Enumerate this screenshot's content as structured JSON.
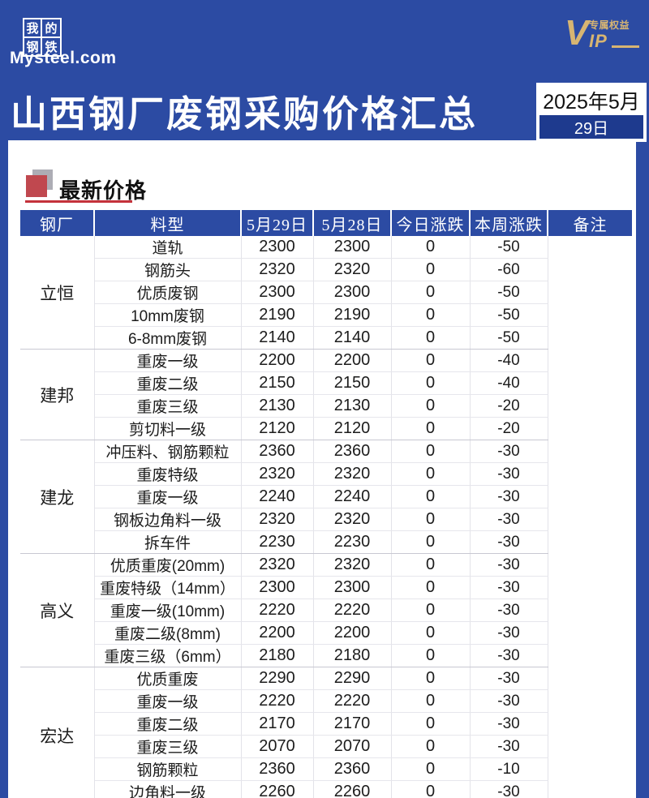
{
  "brand": {
    "logo_chars": [
      "我",
      "的",
      "钢",
      "铁"
    ],
    "logo_domain": "Mysteel.com",
    "vip": {
      "v": "V",
      "ip": "IP",
      "badge": "专属权益"
    }
  },
  "header": {
    "title": "山西钢厂废钢采购价格汇总",
    "date_month": "2025年5月",
    "date_day": "29日"
  },
  "section": {
    "title": "最新价格"
  },
  "table": {
    "columns": [
      "钢厂",
      "料型",
      "5月29日",
      "5月28日",
      "今日涨跌",
      "本周涨跌",
      "备注"
    ],
    "groups": [
      {
        "name": "立恒",
        "rows": [
          {
            "material": "道轨",
            "p29": "2300",
            "p28": "2300",
            "day_chg": "0",
            "week_chg": "-50",
            "remark": ""
          },
          {
            "material": "钢筋头",
            "p29": "2320",
            "p28": "2320",
            "day_chg": "0",
            "week_chg": "-60",
            "remark": ""
          },
          {
            "material": "优质废钢",
            "p29": "2300",
            "p28": "2300",
            "day_chg": "0",
            "week_chg": "-50",
            "remark": ""
          },
          {
            "material": "10mm废钢",
            "p29": "2190",
            "p28": "2190",
            "day_chg": "0",
            "week_chg": "-50",
            "remark": ""
          },
          {
            "material": "6-8mm废钢",
            "p29": "2140",
            "p28": "2140",
            "day_chg": "0",
            "week_chg": "-50",
            "remark": ""
          }
        ]
      },
      {
        "name": "建邦",
        "rows": [
          {
            "material": "重废一级",
            "p29": "2200",
            "p28": "2200",
            "day_chg": "0",
            "week_chg": "-40",
            "remark": ""
          },
          {
            "material": "重废二级",
            "p29": "2150",
            "p28": "2150",
            "day_chg": "0",
            "week_chg": "-40",
            "remark": ""
          },
          {
            "material": "重废三级",
            "p29": "2130",
            "p28": "2130",
            "day_chg": "0",
            "week_chg": "-20",
            "remark": ""
          },
          {
            "material": "剪切料一级",
            "p29": "2120",
            "p28": "2120",
            "day_chg": "0",
            "week_chg": "-20",
            "remark": ""
          }
        ]
      },
      {
        "name": "建龙",
        "rows": [
          {
            "material": "冲压料、钢筋颗粒",
            "p29": "2360",
            "p28": "2360",
            "day_chg": "0",
            "week_chg": "-30",
            "remark": ""
          },
          {
            "material": "重废特级",
            "p29": "2320",
            "p28": "2320",
            "day_chg": "0",
            "week_chg": "-30",
            "remark": ""
          },
          {
            "material": "重废一级",
            "p29": "2240",
            "p28": "2240",
            "day_chg": "0",
            "week_chg": "-30",
            "remark": ""
          },
          {
            "material": "钢板边角料一级",
            "p29": "2320",
            "p28": "2320",
            "day_chg": "0",
            "week_chg": "-30",
            "remark": ""
          },
          {
            "material": "拆车件",
            "p29": "2230",
            "p28": "2230",
            "day_chg": "0",
            "week_chg": "-30",
            "remark": ""
          }
        ]
      },
      {
        "name": "高义",
        "rows": [
          {
            "material": "优质重废(20mm)",
            "p29": "2320",
            "p28": "2320",
            "day_chg": "0",
            "week_chg": "-30",
            "remark": ""
          },
          {
            "material": "重废特级（14mm）",
            "p29": "2300",
            "p28": "2300",
            "day_chg": "0",
            "week_chg": "-30",
            "remark": ""
          },
          {
            "material": "重废一级(10mm)",
            "p29": "2220",
            "p28": "2220",
            "day_chg": "0",
            "week_chg": "-30",
            "remark": ""
          },
          {
            "material": "重废二级(8mm)",
            "p29": "2200",
            "p28": "2200",
            "day_chg": "0",
            "week_chg": "-30",
            "remark": ""
          },
          {
            "material": "重废三级（6mm）",
            "p29": "2180",
            "p28": "2180",
            "day_chg": "0",
            "week_chg": "-30",
            "remark": ""
          }
        ]
      },
      {
        "name": "宏达",
        "rows": [
          {
            "material": "优质重废",
            "p29": "2290",
            "p28": "2290",
            "day_chg": "0",
            "week_chg": "-30",
            "remark": ""
          },
          {
            "material": "重废一级",
            "p29": "2220",
            "p28": "2220",
            "day_chg": "0",
            "week_chg": "-30",
            "remark": ""
          },
          {
            "material": "重废二级",
            "p29": "2170",
            "p28": "2170",
            "day_chg": "0",
            "week_chg": "-30",
            "remark": ""
          },
          {
            "material": "重废三级",
            "p29": "2070",
            "p28": "2070",
            "day_chg": "0",
            "week_chg": "-30",
            "remark": ""
          },
          {
            "material": "钢筋颗粒",
            "p29": "2360",
            "p28": "2360",
            "day_chg": "0",
            "week_chg": "-10",
            "remark": ""
          },
          {
            "material": "边角料一级",
            "p29": "2260",
            "p28": "2260",
            "day_chg": "0",
            "week_chg": "-30",
            "remark": ""
          }
        ]
      }
    ]
  },
  "colors": {
    "banner_blue": "#2C4BA3",
    "day_cell_blue": "#1E3A8E",
    "vip_gold": "#D7B572",
    "accent_red": "#C0484F",
    "underline_red": "#C4323B",
    "negative_green": "#74A050"
  }
}
